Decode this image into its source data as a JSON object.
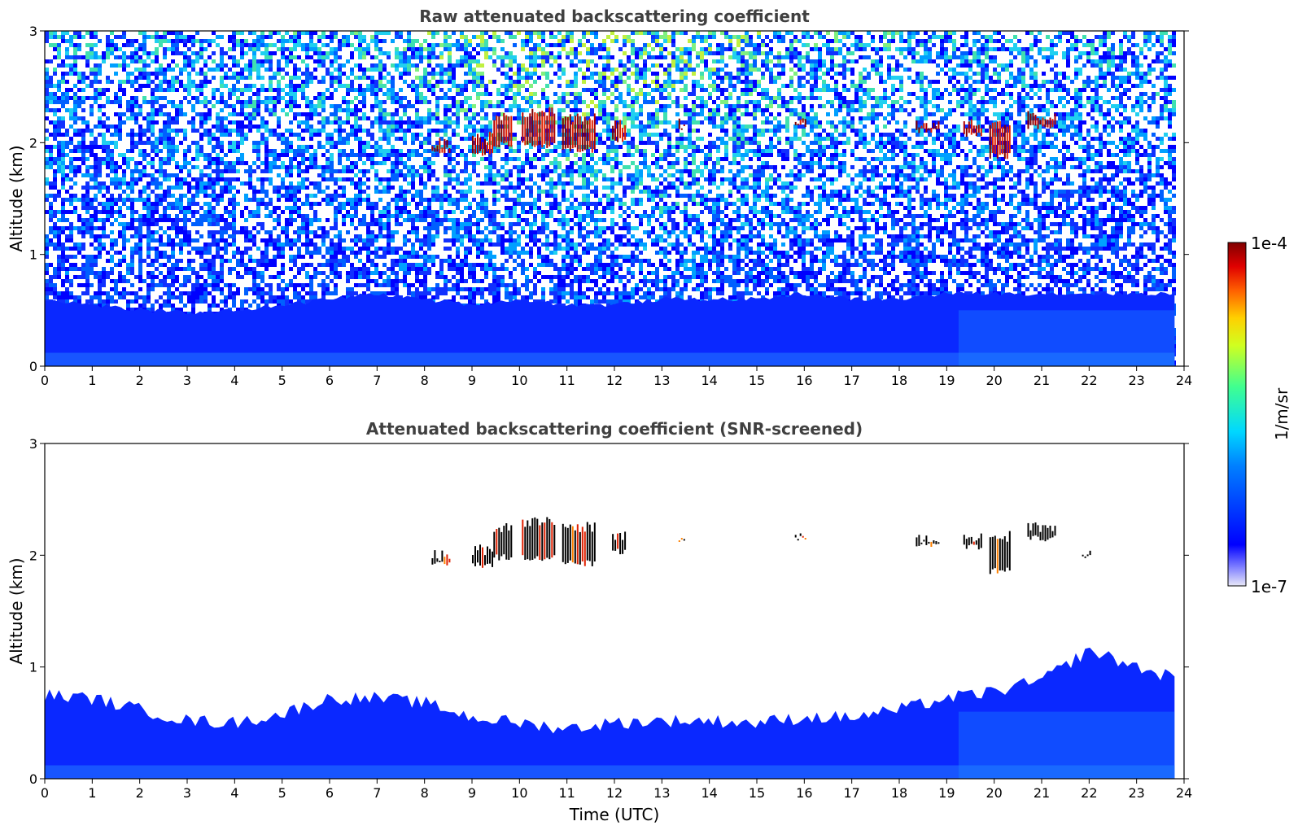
{
  "chart_data": [
    {
      "type": "heatmap",
      "title": "Raw attenuated backscattering coefficient",
      "xlabel": "",
      "ylabel": "Altitude (km)",
      "xlim": [
        0,
        24
      ],
      "ylim": [
        0,
        3
      ],
      "x_ticks": [
        "0",
        "1",
        "2",
        "3",
        "4",
        "5",
        "6",
        "7",
        "8",
        "9",
        "10",
        "11",
        "12",
        "13",
        "14",
        "15",
        "16",
        "17",
        "18",
        "19",
        "20",
        "21",
        "22",
        "23",
        "24"
      ],
      "y_ticks": [
        "0",
        "1",
        "2",
        "3"
      ],
      "data_end_hour": 23.8,
      "noise_background": true,
      "boundary_layer_km": [
        [
          0,
          0.6
        ],
        [
          1,
          0.55
        ],
        [
          2,
          0.5
        ],
        [
          3,
          0.48
        ],
        [
          4,
          0.5
        ],
        [
          5,
          0.55
        ],
        [
          6,
          0.6
        ],
        [
          7,
          0.65
        ],
        [
          8,
          0.6
        ],
        [
          9,
          0.55
        ],
        [
          10,
          0.6
        ],
        [
          11,
          0.55
        ],
        [
          12,
          0.55
        ],
        [
          13,
          0.6
        ],
        [
          14,
          0.6
        ],
        [
          15,
          0.6
        ],
        [
          16,
          0.65
        ],
        [
          17,
          0.6
        ],
        [
          18,
          0.6
        ],
        [
          19,
          0.65
        ],
        [
          20,
          0.65
        ],
        [
          21,
          0.65
        ],
        [
          22,
          0.65
        ],
        [
          23,
          0.65
        ],
        [
          23.8,
          0.65
        ]
      ],
      "cloud_segments": [
        {
          "t0": 8.15,
          "t1": 8.55,
          "base_km": 1.9,
          "top_km": 2.05
        },
        {
          "t0": 9.0,
          "t1": 9.45,
          "base_km": 1.88,
          "top_km": 2.1
        },
        {
          "t0": 9.45,
          "t1": 9.85,
          "base_km": 1.95,
          "top_km": 2.28
        },
        {
          "t0": 10.05,
          "t1": 10.75,
          "base_km": 1.95,
          "top_km": 2.32
        },
        {
          "t0": 10.9,
          "t1": 11.6,
          "base_km": 1.9,
          "top_km": 2.28
        },
        {
          "t0": 11.95,
          "t1": 12.25,
          "base_km": 2.0,
          "top_km": 2.22
        },
        {
          "t0": 13.35,
          "t1": 13.5,
          "base_km": 2.12,
          "top_km": 2.22
        },
        {
          "t0": 15.8,
          "t1": 16.05,
          "base_km": 2.14,
          "top_km": 2.22
        },
        {
          "t0": 18.35,
          "t1": 18.85,
          "base_km": 2.07,
          "top_km": 2.2
        },
        {
          "t0": 19.35,
          "t1": 19.75,
          "base_km": 2.05,
          "top_km": 2.22
        },
        {
          "t0": 19.9,
          "t1": 20.35,
          "base_km": 1.85,
          "top_km": 2.22
        },
        {
          "t0": 20.7,
          "t1": 21.3,
          "base_km": 2.12,
          "top_km": 2.3
        }
      ]
    },
    {
      "type": "heatmap",
      "title": "Attenuated backscattering coefficient (SNR-screened)",
      "xlabel": "Time (UTC)",
      "ylabel": "Altitude (km)",
      "xlim": [
        0,
        24
      ],
      "ylim": [
        0,
        3
      ],
      "x_ticks": [
        "0",
        "1",
        "2",
        "3",
        "4",
        "5",
        "6",
        "7",
        "8",
        "9",
        "10",
        "11",
        "12",
        "13",
        "14",
        "15",
        "16",
        "17",
        "18",
        "19",
        "20",
        "21",
        "22",
        "23",
        "24"
      ],
      "y_ticks": [
        "0",
        "1",
        "2",
        "3"
      ],
      "data_end_hour": 23.8,
      "noise_background": false,
      "boundary_layer_km": [
        [
          0,
          0.75
        ],
        [
          1,
          0.72
        ],
        [
          2,
          0.62
        ],
        [
          3,
          0.52
        ],
        [
          4,
          0.5
        ],
        [
          5,
          0.58
        ],
        [
          6,
          0.72
        ],
        [
          7,
          0.72
        ],
        [
          8,
          0.68
        ],
        [
          9,
          0.55
        ],
        [
          10,
          0.5
        ],
        [
          11,
          0.45
        ],
        [
          12,
          0.5
        ],
        [
          13,
          0.52
        ],
        [
          14,
          0.52
        ],
        [
          15,
          0.5
        ],
        [
          16,
          0.55
        ],
        [
          17,
          0.55
        ],
        [
          18,
          0.62
        ],
        [
          19,
          0.72
        ],
        [
          20,
          0.78
        ],
        [
          21,
          0.88
        ],
        [
          22,
          1.15
        ],
        [
          23,
          1.0
        ],
        [
          23.8,
          0.9
        ]
      ],
      "cloud_segments": [
        {
          "t0": 8.15,
          "t1": 8.55,
          "base_km": 1.9,
          "top_km": 2.05
        },
        {
          "t0": 9.0,
          "t1": 9.45,
          "base_km": 1.88,
          "top_km": 2.1
        },
        {
          "t0": 9.45,
          "t1": 9.85,
          "base_km": 1.95,
          "top_km": 2.3
        },
        {
          "t0": 10.05,
          "t1": 10.75,
          "base_km": 1.95,
          "top_km": 2.35
        },
        {
          "t0": 10.9,
          "t1": 11.6,
          "base_km": 1.9,
          "top_km": 2.3
        },
        {
          "t0": 11.95,
          "t1": 12.25,
          "base_km": 2.0,
          "top_km": 2.22
        },
        {
          "t0": 13.35,
          "t1": 13.5,
          "base_km": 2.12,
          "top_km": 2.22
        },
        {
          "t0": 15.8,
          "t1": 16.05,
          "base_km": 2.14,
          "top_km": 2.22
        },
        {
          "t0": 18.35,
          "t1": 18.85,
          "base_km": 2.07,
          "top_km": 2.2
        },
        {
          "t0": 19.35,
          "t1": 19.75,
          "base_km": 2.05,
          "top_km": 2.22
        },
        {
          "t0": 19.9,
          "t1": 20.35,
          "base_km": 1.83,
          "top_km": 2.22
        },
        {
          "t0": 20.7,
          "t1": 21.3,
          "base_km": 2.12,
          "top_km": 2.3
        },
        {
          "t0": 21.85,
          "t1": 22.05,
          "base_km": 2.0,
          "top_km": 2.08
        }
      ]
    }
  ],
  "colorbar": {
    "label": "1/m/sr",
    "max_label": "1e-4",
    "min_label": "1e-7",
    "colormap": "jet",
    "scale": "log"
  }
}
